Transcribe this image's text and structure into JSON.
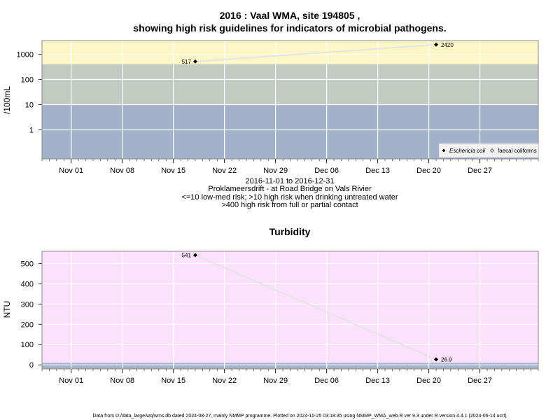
{
  "chart_data": [
    {
      "type": "line",
      "title_line1": "2016 : Vaal WMA, site 194805 ,",
      "title_line2": "showing high risk guidelines for indicators of microbial pathogens.",
      "ylabel": "/100mL",
      "yscale": "log10",
      "ylim": [
        0.07,
        3500
      ],
      "yticks": [
        1,
        10,
        100,
        1000
      ],
      "ytick_labels": [
        "1",
        "10",
        "100",
        "1000"
      ],
      "xlim": [
        "2016-10-28",
        "2017-01-04"
      ],
      "xticks": [
        "2016-11-01",
        "2016-11-08",
        "2016-11-15",
        "2016-11-22",
        "2016-11-29",
        "2016-12-06",
        "2016-12-13",
        "2016-12-20",
        "2016-12-27"
      ],
      "xtick_labels": [
        "Nov 01",
        "Nov 08",
        "Nov 15",
        "Nov 22",
        "Nov 29",
        "Dec 06",
        "Dec 13",
        "Dec 20",
        "Dec 27"
      ],
      "bands": [
        {
          "from": 0.07,
          "to": 10,
          "color": "#a2b2cb",
          "meaning": "<=10 low-med risk"
        },
        {
          "from": 10,
          "to": 400,
          "color": "#c1cbc2",
          "meaning": ">10 high risk when drinking untreated water"
        },
        {
          "from": 400,
          "to": 3500,
          "color": "#fdf7c8",
          "meaning": ">400 high risk from full or partial contact"
        }
      ],
      "grid": true,
      "series": [
        {
          "name": "Eschericia coli",
          "marker": "filled-diamond",
          "x": [
            "2016-11-18",
            "2016-12-21"
          ],
          "y": [
            517,
            2420
          ],
          "labels": [
            "517",
            "2420"
          ]
        }
      ],
      "legend_position": "bottom-right",
      "legend": [
        {
          "label": "Eschericia coli",
          "marker": "filled",
          "italic": true
        },
        {
          "label": "faecal coliforms",
          "marker": "open",
          "italic": false
        }
      ],
      "caption": [
        "2016-11-01 to 2016-12-31",
        "Proklameersdrift - at Road Bridge on Vals Rivier",
        "<=10 low-med risk; >10 high risk when drinking untreated water",
        ">400 high risk from full or partial contact"
      ]
    },
    {
      "type": "line",
      "title": "Turbidity",
      "ylabel": "NTU",
      "yscale": "linear",
      "ylim": [
        -20,
        560
      ],
      "yticks": [
        0,
        100,
        200,
        300,
        400,
        500
      ],
      "ytick_labels": [
        "0",
        "100",
        "200",
        "300",
        "400",
        "500"
      ],
      "xlim": [
        "2016-10-28",
        "2017-01-04"
      ],
      "xticks": [
        "2016-11-01",
        "2016-11-08",
        "2016-11-15",
        "2016-11-22",
        "2016-11-29",
        "2016-12-06",
        "2016-12-13",
        "2016-12-20",
        "2016-12-27"
      ],
      "xtick_labels": [
        "Nov 01",
        "Nov 08",
        "Nov 15",
        "Nov 22",
        "Nov 29",
        "Dec 06",
        "Dec 13",
        "Dec 20",
        "Dec 27"
      ],
      "bands": [
        {
          "from": -20,
          "to": 10,
          "color": "#a2b2cb"
        },
        {
          "from": 10,
          "to": 560,
          "color": "#fde0fd"
        }
      ],
      "grid": true,
      "series": [
        {
          "name": "Turbidity",
          "marker": "filled-diamond",
          "x": [
            "2016-11-18",
            "2016-12-21"
          ],
          "y": [
            541,
            26.9
          ],
          "labels": [
            "541",
            "26.9"
          ]
        }
      ]
    }
  ],
  "footer": "Data from D:/data_large/wq/wms.db dated 2024-08-27, mainly NMMP programme. Plotted on 2024-10-25 03:18:35 using NMMP_WMA_web.R ver 9.3 under R version 4.4.1 (2024-06-14 ucrt)"
}
